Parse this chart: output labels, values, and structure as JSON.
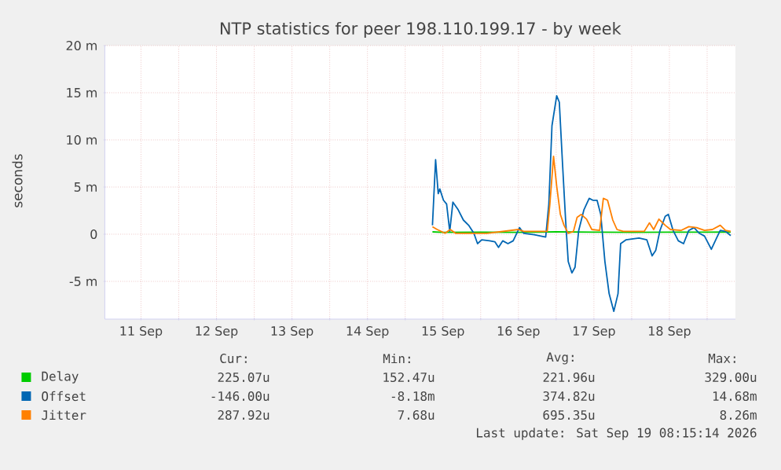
{
  "chart_data": {
    "type": "line",
    "title": "NTP statistics for peer 198.110.199.17 - by week",
    "ylabel": "seconds",
    "xlim": [
      "2026-09-11T00:30",
      "2026-09-19T09:00"
    ],
    "xticks": [
      {
        "value": "2026-09-11T12:00",
        "label": "11 Sep"
      },
      {
        "value": "2026-09-12T00:00",
        "label": null
      },
      {
        "value": "2026-09-12T12:00",
        "label": "12 Sep"
      },
      {
        "value": "2026-09-13T00:00",
        "label": null
      },
      {
        "value": "2026-09-13T12:00",
        "label": "13 Sep"
      },
      {
        "value": "2026-09-14T00:00",
        "label": null
      },
      {
        "value": "2026-09-14T12:00",
        "label": "14 Sep"
      },
      {
        "value": "2026-09-15T00:00",
        "label": null
      },
      {
        "value": "2026-09-15T12:00",
        "label": "15 Sep"
      },
      {
        "value": "2026-09-16T00:00",
        "label": null
      },
      {
        "value": "2026-09-16T12:00",
        "label": "16 Sep"
      },
      {
        "value": "2026-09-17T00:00",
        "label": null
      },
      {
        "value": "2026-09-17T12:00",
        "label": "17 Sep"
      },
      {
        "value": "2026-09-18T00:00",
        "label": null
      },
      {
        "value": "2026-09-18T12:00",
        "label": "18 Sep"
      },
      {
        "value": "2026-09-19T00:00",
        "label": null
      }
    ],
    "ylim": [
      -9,
      20
    ],
    "yticks": [
      {
        "value": -5,
        "label": "-5 m"
      },
      0,
      {
        "value": 5,
        "label": "5 m"
      },
      {
        "value": 10,
        "label": "10 m"
      },
      {
        "value": 15,
        "label": "15 m"
      },
      {
        "value": 20,
        "label": "20 m"
      }
    ],
    "grid": true,
    "legend": "bottom",
    "series": [
      {
        "name": "Delay",
        "color": "#00cc00",
        "x": [
          "2026-09-15T08:40",
          "2026-09-15T12:00",
          "2026-09-16T00:00",
          "2026-09-16T12:00",
          "2026-09-17T00:00",
          "2026-09-17T12:00",
          "2026-09-18T00:00",
          "2026-09-18T12:00",
          "2026-09-19T00:00",
          "2026-09-19T07:30"
        ],
        "values": [
          0.25,
          0.2,
          0.22,
          0.2,
          0.25,
          0.22,
          0.2,
          0.22,
          0.22,
          0.23
        ]
      },
      {
        "name": "Offset",
        "color": "#0066b3",
        "x": [
          "2026-09-15T08:40",
          "2026-09-15T09:40",
          "2026-09-15T10:30",
          "2026-09-15T11:00",
          "2026-09-15T12:10",
          "2026-09-15T13:10",
          "2026-09-15T14:10",
          "2026-09-15T15:10",
          "2026-09-15T16:50",
          "2026-09-15T18:30",
          "2026-09-15T20:10",
          "2026-09-15T21:50",
          "2026-09-15T23:00",
          "2026-09-16T00:20",
          "2026-09-16T02:50",
          "2026-09-16T04:30",
          "2026-09-16T05:40",
          "2026-09-16T07:00",
          "2026-09-16T08:40",
          "2026-09-16T10:20",
          "2026-09-16T12:20",
          "2026-09-16T13:40",
          "2026-09-16T17:00",
          "2026-09-16T20:40",
          "2026-09-16T21:40",
          "2026-09-16T22:40",
          "2026-09-17T00:10",
          "2026-09-17T01:00",
          "2026-09-17T02:00",
          "2026-09-17T03:00",
          "2026-09-17T03:50",
          "2026-09-17T05:00",
          "2026-09-17T06:00",
          "2026-09-17T07:10",
          "2026-09-17T08:50",
          "2026-09-17T10:30",
          "2026-09-17T11:40",
          "2026-09-17T13:00",
          "2026-09-17T14:10",
          "2026-09-17T15:30",
          "2026-09-17T16:50",
          "2026-09-17T18:20",
          "2026-09-17T19:40",
          "2026-09-17T20:30",
          "2026-09-17T22:10",
          "2026-09-18T02:20",
          "2026-09-18T04:50",
          "2026-09-18T06:30",
          "2026-09-18T07:40",
          "2026-09-18T09:00",
          "2026-09-18T10:40",
          "2026-09-18T11:40",
          "2026-09-18T13:10",
          "2026-09-18T14:50",
          "2026-09-18T16:30",
          "2026-09-18T18:10",
          "2026-09-18T19:50",
          "2026-09-18T21:30",
          "2026-09-18T23:10",
          "2026-09-19T01:20",
          "2026-09-19T03:00",
          "2026-09-19T04:10",
          "2026-09-19T05:50",
          "2026-09-19T07:30"
        ],
        "values": [
          0.95,
          7.9,
          4.3,
          4.8,
          3.6,
          3.2,
          0.3,
          3.4,
          2.6,
          1.5,
          0.95,
          0.1,
          -1.0,
          -0.6,
          -0.7,
          -0.8,
          -1.4,
          -0.7,
          -1.0,
          -0.7,
          0.7,
          0.1,
          -0.05,
          -0.3,
          3.2,
          11.5,
          14.68,
          14.0,
          7.6,
          1.5,
          -2.9,
          -4.1,
          -3.5,
          0.4,
          2.6,
          3.8,
          3.6,
          3.6,
          2.1,
          -2.9,
          -6.3,
          -8.18,
          -6.3,
          -1.0,
          -0.6,
          -0.4,
          -0.6,
          -2.3,
          -1.7,
          0.4,
          1.9,
          2.1,
          0.4,
          -0.7,
          -1.0,
          0.4,
          0.7,
          0.1,
          -0.2,
          -1.6,
          -0.4,
          0.4,
          0.3,
          -0.15
        ]
      },
      {
        "name": "Jitter",
        "color": "#ff8000",
        "x": [
          "2026-09-15T08:40",
          "2026-09-15T10:10",
          "2026-09-15T12:40",
          "2026-09-15T14:20",
          "2026-09-15T16:00",
          "2026-09-16T02:00",
          "2026-09-16T12:00",
          "2026-09-16T13:40",
          "2026-09-16T21:10",
          "2026-09-16T22:00",
          "2026-09-16T23:10",
          "2026-09-17T00:10",
          "2026-09-17T01:20",
          "2026-09-17T02:30",
          "2026-09-17T03:50",
          "2026-09-17T05:30",
          "2026-09-17T06:40",
          "2026-09-17T08:00",
          "2026-09-17T09:40",
          "2026-09-17T11:20",
          "2026-09-17T13:50",
          "2026-09-17T15:00",
          "2026-09-17T16:20",
          "2026-09-17T18:00",
          "2026-09-17T19:20",
          "2026-09-17T21:20",
          "2026-09-18T04:00",
          "2026-09-18T05:40",
          "2026-09-18T07:00",
          "2026-09-18T08:40",
          "2026-09-18T10:40",
          "2026-09-18T12:20",
          "2026-09-18T15:40",
          "2026-09-18T18:10",
          "2026-09-18T20:40",
          "2026-09-18T23:10",
          "2026-09-19T01:40",
          "2026-09-19T04:10",
          "2026-09-19T05:50",
          "2026-09-19T07:30"
        ],
        "values": [
          0.8,
          0.5,
          0.1,
          0.5,
          0.1,
          0.1,
          0.5,
          0.3,
          0.3,
          3.2,
          8.26,
          5.1,
          2.1,
          0.95,
          0.1,
          0.3,
          1.8,
          2.1,
          1.6,
          0.5,
          0.4,
          3.8,
          3.6,
          1.5,
          0.5,
          0.3,
          0.3,
          1.2,
          0.5,
          1.6,
          0.95,
          0.5,
          0.4,
          0.8,
          0.7,
          0.4,
          0.5,
          0.95,
          0.4,
          0.3
        ]
      }
    ],
    "annotations": [
      "Cur:",
      "Min:",
      "Avg:",
      "Max:",
      "225.07u",
      "152.47u",
      "221.96u",
      "329.00u",
      "-146.00u",
      "-8.18m",
      "374.82u",
      "14.68m",
      "287.92u",
      "7.68u",
      "695.35u",
      "8.26m",
      "Last update: Sat Sep 19 08:15:14 2026"
    ]
  }
}
